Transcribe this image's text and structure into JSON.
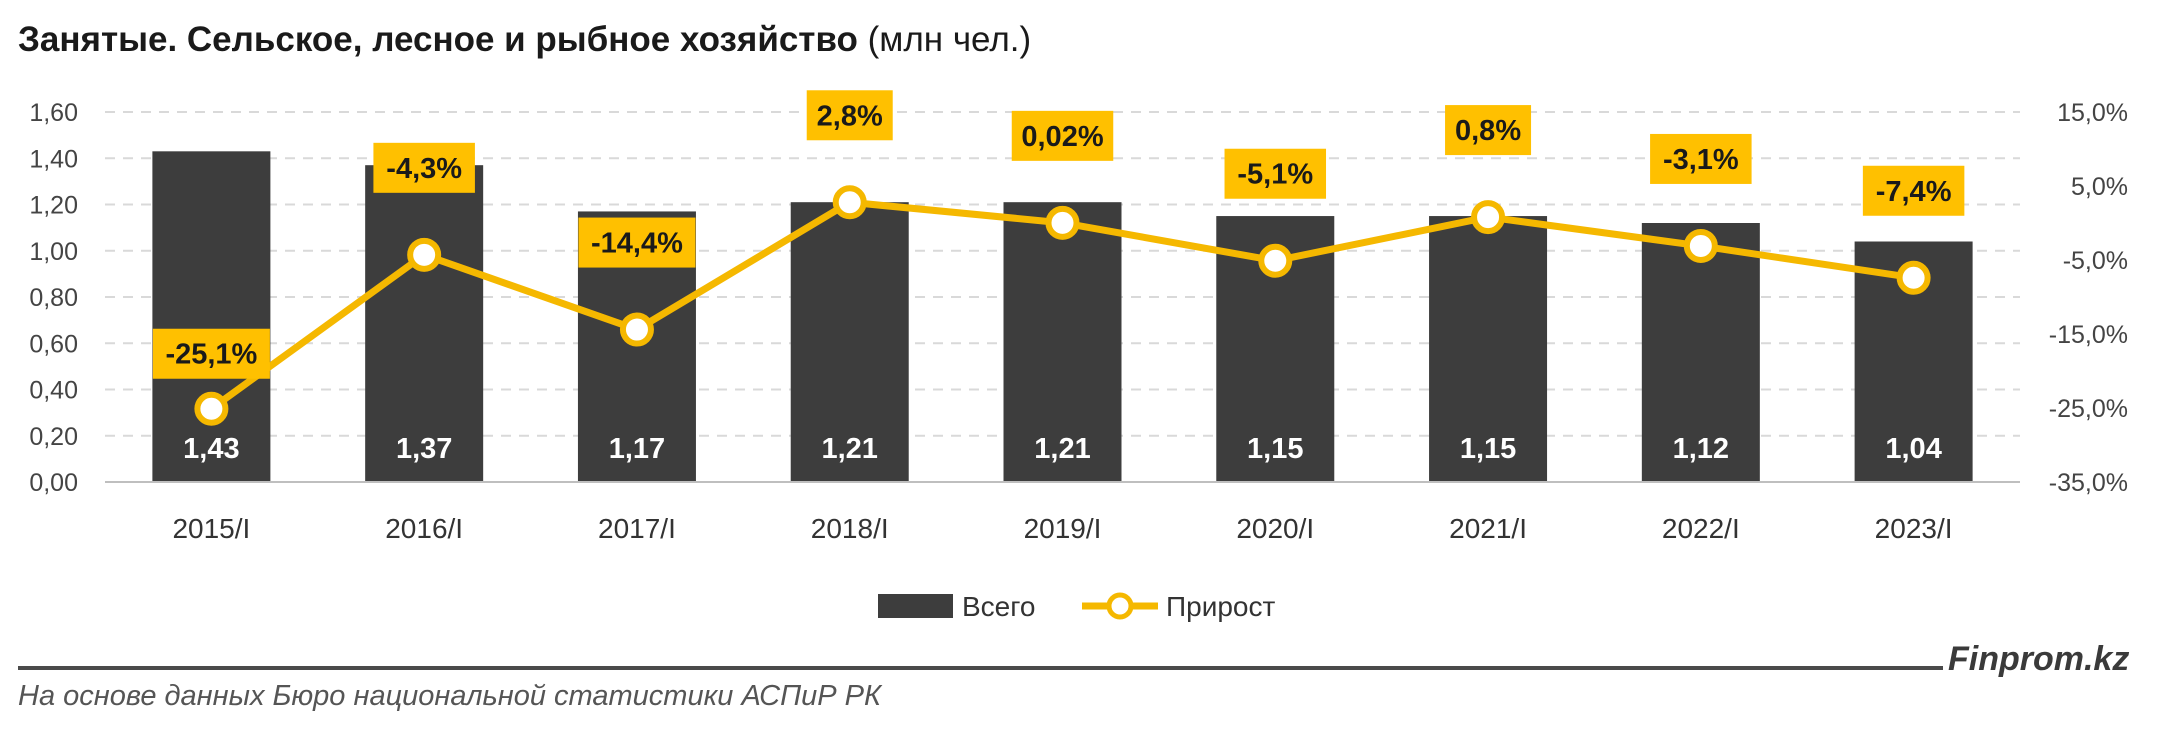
{
  "header": {
    "title_bold": "Занятые. Сельское, лесное и рыбное хозяйство",
    "title_unit": "(млн чел.)"
  },
  "footer": {
    "brand": "Finprom.kz",
    "source": "На основе данных Бюро национальной статистики АСПиР РК"
  },
  "colors": {
    "bar": "#3d3d3d",
    "line": "#f5b800",
    "label_box": "#ffc000",
    "grid": "#d9d9d9"
  },
  "chart_data": {
    "type": "bar",
    "categories": [
      "2015/I",
      "2016/I",
      "2017/I",
      "2018/I",
      "2019/I",
      "2020/I",
      "2021/I",
      "2022/I",
      "2023/I"
    ],
    "series": [
      {
        "name": "Всего",
        "type": "bar",
        "axis": "left",
        "values": [
          1.43,
          1.37,
          1.17,
          1.21,
          1.21,
          1.15,
          1.15,
          1.12,
          1.04
        ],
        "labels": [
          "1,43",
          "1,37",
          "1,17",
          "1,21",
          "1,21",
          "1,15",
          "1,15",
          "1,12",
          "1,04"
        ]
      },
      {
        "name": "Прирост",
        "type": "line",
        "axis": "right",
        "values": [
          -25.1,
          -4.3,
          -14.4,
          2.8,
          0.02,
          -5.1,
          0.8,
          -3.1,
          -7.4
        ],
        "labels": [
          "-25,1%",
          "-4,3%",
          "-14,4%",
          "2,8%",
          "0,02%",
          "-5,1%",
          "0,8%",
          "-3,1%",
          "-7,4%"
        ]
      }
    ],
    "y_left": {
      "range": [
        0,
        1.6
      ],
      "ticks": [
        0,
        0.2,
        0.4,
        0.6,
        0.8,
        1.0,
        1.2,
        1.4,
        1.6
      ],
      "tick_labels": [
        "0,00",
        "0,20",
        "0,40",
        "0,60",
        "0,80",
        "1,00",
        "1,20",
        "1,40",
        "1,60"
      ]
    },
    "y_right": {
      "range": [
        -35,
        15
      ],
      "ticks": [
        -35,
        -25,
        -15,
        -5,
        5,
        15
      ],
      "tick_labels": [
        "-35,0%",
        "-25,0%",
        "-15,0%",
        "-5,0%",
        "5,0%",
        "15,0%"
      ]
    },
    "grid": true,
    "legend": "bottom"
  }
}
